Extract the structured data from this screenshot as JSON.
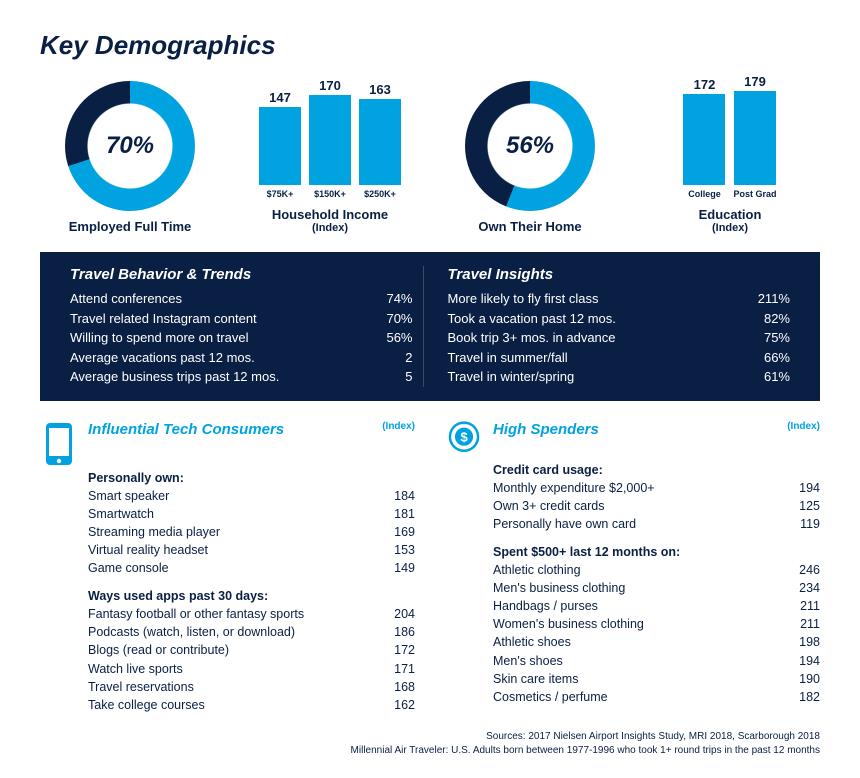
{
  "title": "Key Demographics",
  "colors": {
    "navy": "#0a1f44",
    "brand_blue": "#00a3e0",
    "white": "#ffffff"
  },
  "donuts": [
    {
      "label": "Employed Full Time",
      "pct": 70,
      "size": 130,
      "thickness": 22
    },
    {
      "label": "Own Their Home",
      "pct": 56,
      "size": 130,
      "thickness": 22
    }
  ],
  "bar_charts": [
    {
      "title": "Household Income",
      "sub": "(Index)",
      "max": 180,
      "bars": [
        {
          "label": "$75K+",
          "value": 147
        },
        {
          "label": "$150K+",
          "value": 170
        },
        {
          "label": "$250K+",
          "value": 163
        }
      ]
    },
    {
      "title": "Education",
      "sub": "(Index)",
      "max": 180,
      "bars": [
        {
          "label": "College",
          "value": 172
        },
        {
          "label": "Post Grad",
          "value": 179
        }
      ]
    }
  ],
  "travel_behavior": {
    "title": "Travel Behavior & Trends",
    "rows": [
      {
        "label": "Attend conferences",
        "value": "74%"
      },
      {
        "label": "Travel related Instagram content",
        "value": "70%"
      },
      {
        "label": "Willing to spend more on travel",
        "value": "56%"
      },
      {
        "label": "Average vacations past 12 mos.",
        "value": "2"
      },
      {
        "label": "Average business trips past 12 mos.",
        "value": "5"
      }
    ]
  },
  "travel_insights": {
    "title": "Travel Insights",
    "rows": [
      {
        "label": "More likely to fly first class",
        "value": "211%"
      },
      {
        "label": "Took a vacation past 12 mos.",
        "value": "82%"
      },
      {
        "label": "Book trip 3+ mos. in advance",
        "value": "75%"
      },
      {
        "label": "Travel in summer/fall",
        "value": "66%"
      },
      {
        "label": "Travel in winter/spring",
        "value": "61%"
      }
    ]
  },
  "tech": {
    "title": "Influential Tech Consumers",
    "index_label": "(Index)",
    "groups": [
      {
        "sub": "Personally own:",
        "rows": [
          {
            "label": "Smart speaker",
            "value": "184"
          },
          {
            "label": "Smartwatch",
            "value": "181"
          },
          {
            "label": "Streaming media player",
            "value": "169"
          },
          {
            "label": "Virtual reality headset",
            "value": "153"
          },
          {
            "label": "Game console",
            "value": "149"
          }
        ]
      },
      {
        "sub": "Ways used apps past 30 days:",
        "rows": [
          {
            "label": "Fantasy football or other fantasy sports",
            "value": "204"
          },
          {
            "label": "Podcasts (watch, listen, or download)",
            "value": "186"
          },
          {
            "label": "Blogs (read or contribute)",
            "value": "172"
          },
          {
            "label": "Watch live sports",
            "value": "171"
          },
          {
            "label": "Travel reservations",
            "value": "168"
          },
          {
            "label": "Take college courses",
            "value": "162"
          }
        ]
      }
    ]
  },
  "spenders": {
    "title": "High Spenders",
    "index_label": "(Index)",
    "groups": [
      {
        "sub": "Credit card usage:",
        "rows": [
          {
            "label": "Monthly expenditure $2,000+",
            "value": "194"
          },
          {
            "label": "Own 3+ credit cards",
            "value": "125"
          },
          {
            "label": "Personally have own card",
            "value": "119"
          }
        ]
      },
      {
        "sub": "Spent $500+ last 12 months on:",
        "rows": [
          {
            "label": "Athletic clothing",
            "value": "246"
          },
          {
            "label": "Men's business clothing",
            "value": "234"
          },
          {
            "label": "Handbags / purses",
            "value": "211"
          },
          {
            "label": "Women's business clothing",
            "value": "211"
          },
          {
            "label": "Athletic shoes",
            "value": "198"
          },
          {
            "label": "Men's shoes",
            "value": "194"
          },
          {
            "label": "Skin care items",
            "value": "190"
          },
          {
            "label": "Cosmetics / perfume",
            "value": "182"
          }
        ]
      }
    ]
  },
  "footer": {
    "line1": "Sources: 2017 Nielsen Airport Insights Study, MRI 2018, Scarborough 2018",
    "line2": "Millennial Air Traveler: U.S. Adults born between 1977-1996 who took 1+ round trips in the past 12 months"
  }
}
